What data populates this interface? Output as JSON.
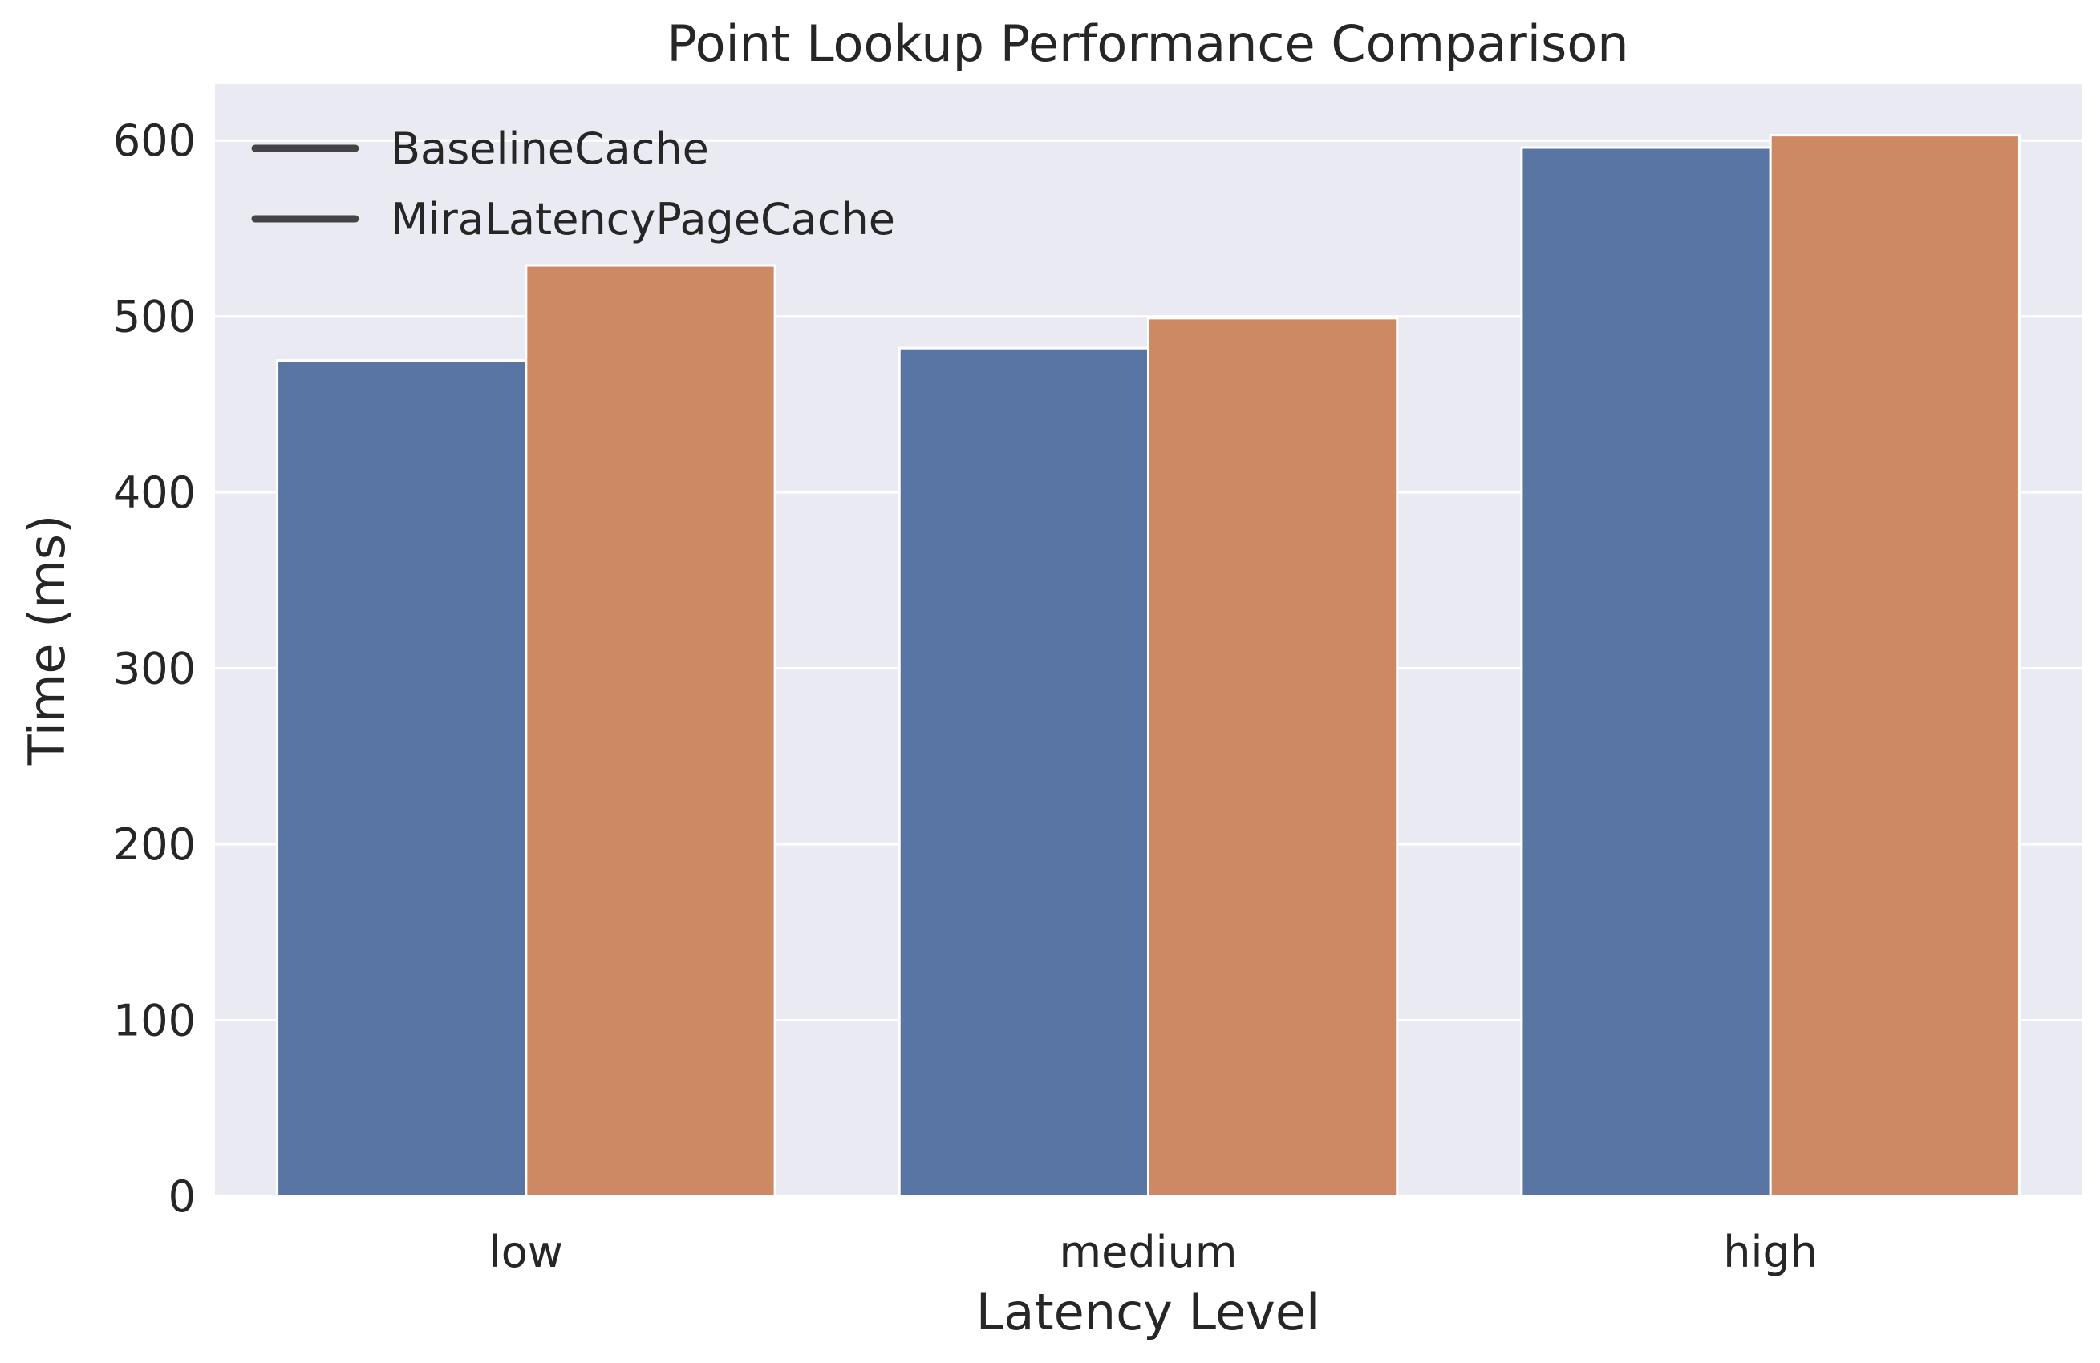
{
  "chart_data": {
    "type": "bar",
    "title": "Point Lookup Performance Comparison",
    "xlabel": "Latency Level",
    "ylabel": "Time (ms)",
    "categories": [
      "low",
      "medium",
      "high"
    ],
    "series": [
      {
        "name": "BaselineCache",
        "color": "#5975a4",
        "values": [
          475,
          482,
          596
        ]
      },
      {
        "name": "MiraLatencyPageCache",
        "color": "#cc8963",
        "values": [
          529,
          499,
          603
        ]
      }
    ],
    "ylim": [
      0,
      632
    ],
    "yticks": [
      0,
      100,
      200,
      300,
      400,
      500,
      600
    ],
    "grid": true,
    "legend_position": "top-left",
    "legend_marker": "line",
    "background": "#eaeaf2",
    "grid_color": "#ffffff"
  }
}
